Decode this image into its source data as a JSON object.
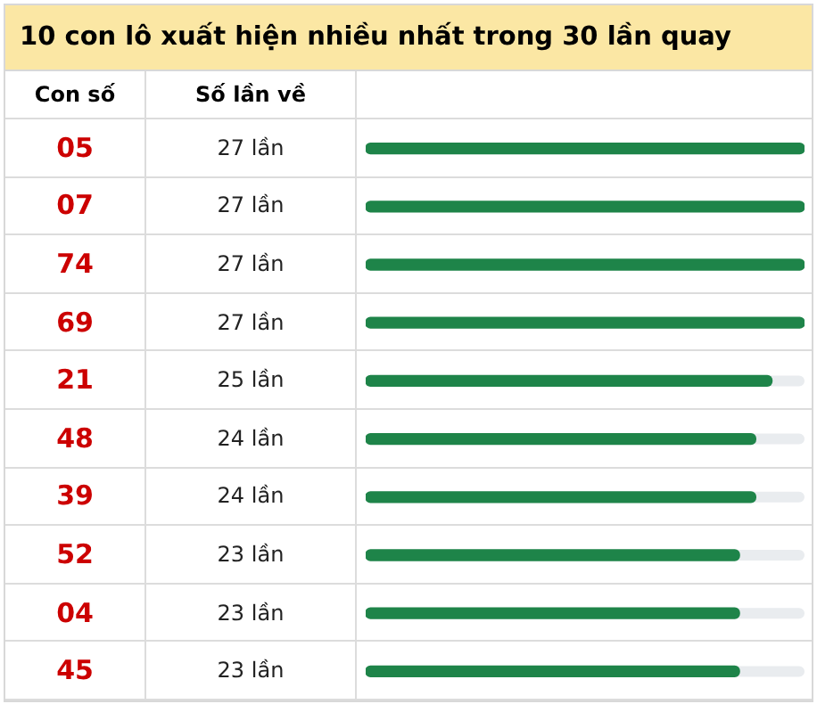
{
  "chart_data": {
    "type": "bar",
    "orientation": "horizontal",
    "title": "10 con lô xuất hiện nhiều nhất trong 30 lần quay",
    "ylabel": "Con số",
    "xlabel": "Số lần về",
    "categories": [
      "05",
      "07",
      "74",
      "69",
      "21",
      "48",
      "39",
      "52",
      "04",
      "45"
    ],
    "values": [
      27,
      27,
      27,
      27,
      25,
      24,
      24,
      23,
      23,
      23
    ],
    "value_labels": [
      "27 lần",
      "27 lần",
      "27 lần",
      "27 lần",
      "25 lần",
      "24 lần",
      "24 lần",
      "23 lần",
      "23 lần",
      "23 lần"
    ],
    "color": "#1e8449",
    "xlim": [
      0,
      27
    ],
    "tick_labels": false
  }
}
